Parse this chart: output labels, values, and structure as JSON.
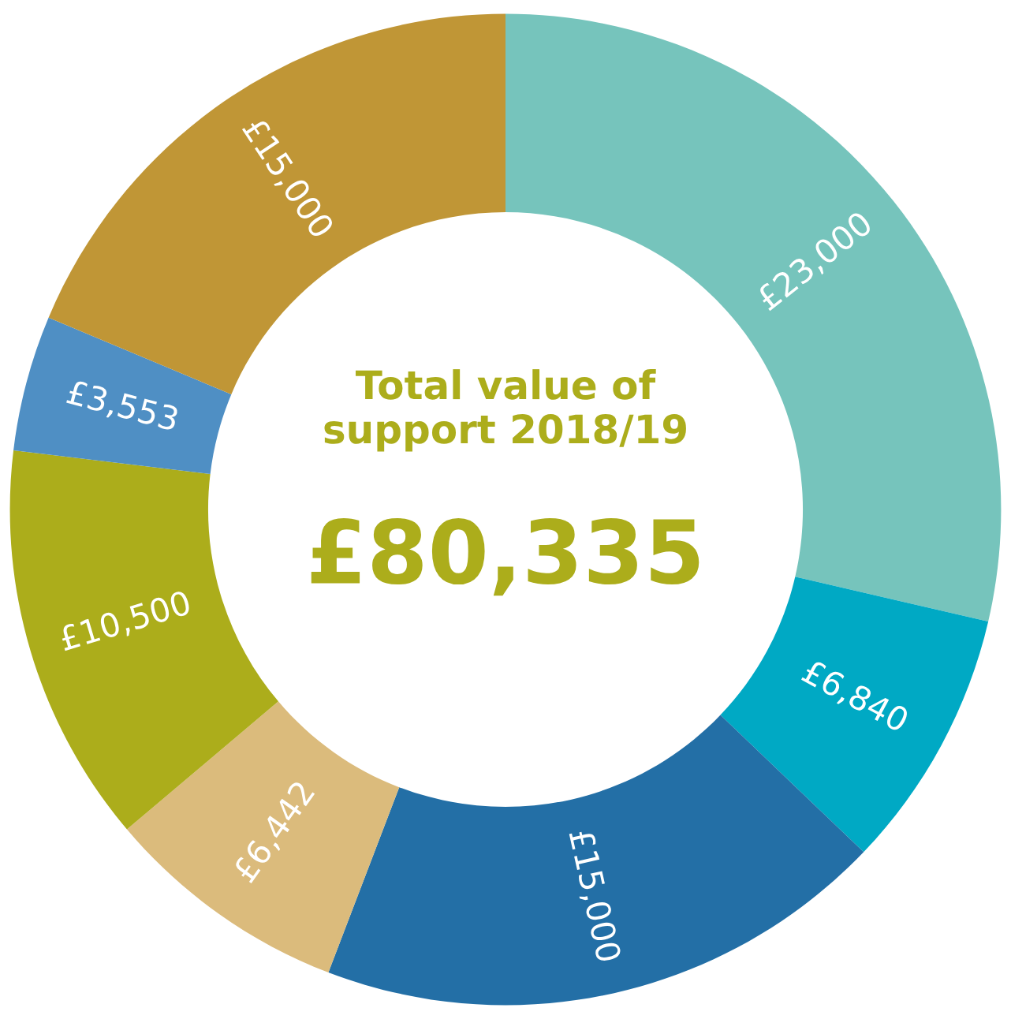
{
  "chart_data": {
    "type": "donut",
    "title": "Total value of\nsupport 2018/19",
    "annotations": [
      "£80,335"
    ],
    "categories": [
      null,
      null,
      null,
      null,
      null,
      null,
      null
    ],
    "values": [
      23000,
      6840,
      15000,
      6442,
      10500,
      3553,
      15000
    ],
    "value_labels": [
      "£23,000",
      "£6,840",
      "£15,000",
      "£6,442",
      "£10,500",
      "£3,553",
      "£15,000"
    ],
    "colors": [
      "#76c4bc",
      "#00a9c4",
      "#236fa6",
      "#dbbb7c",
      "#acad1b",
      "#4f8fc4",
      "#c09636"
    ],
    "legend": false
  }
}
